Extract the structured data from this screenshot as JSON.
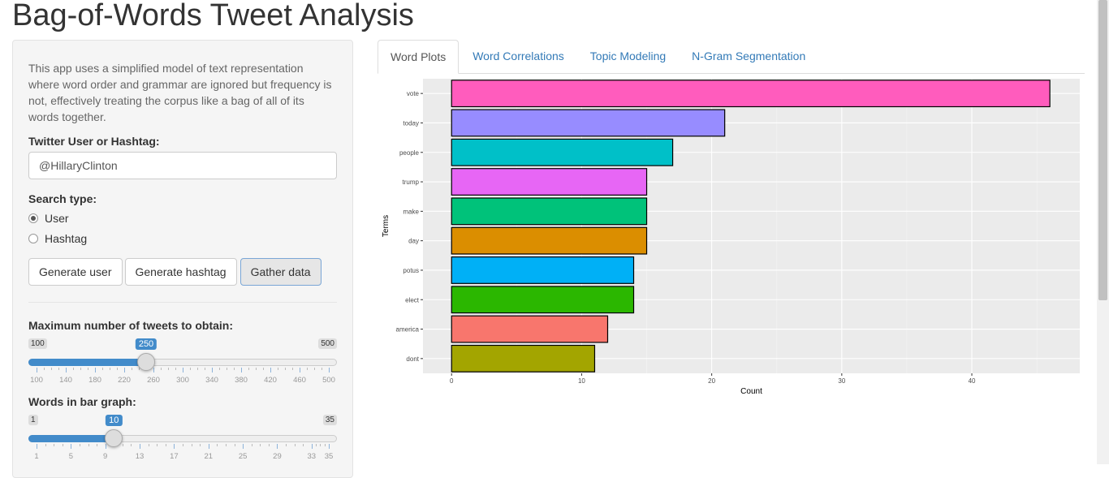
{
  "title": "Bag-of-Words Tweet Analysis",
  "sidebar": {
    "description": "This app uses a simplified model of text representation where word order and grammar are ignored but frequency is not, effectively treating the corpus like a bag of all of its words together.",
    "user_label": "Twitter User or Hashtag:",
    "user_value": "@HillaryClinton",
    "search_type_label": "Search type:",
    "search_options": [
      {
        "label": "User",
        "selected": true
      },
      {
        "label": "Hashtag",
        "selected": false
      }
    ],
    "buttons": {
      "gen_user": "Generate user",
      "gen_hashtag": "Generate hashtag",
      "gather": "Gather data"
    },
    "max_tweets": {
      "label": "Maximum number of tweets to obtain:",
      "min": "100",
      "max": "500",
      "value": "250",
      "min_num": 100,
      "max_num": 500,
      "value_num": 250,
      "ticks": [
        "100",
        "140",
        "180",
        "220",
        "260",
        "300",
        "340",
        "380",
        "420",
        "460",
        "500"
      ]
    },
    "words": {
      "label": "Words in bar graph:",
      "min": "1",
      "max": "35",
      "value": "10",
      "min_num": 1,
      "max_num": 35,
      "value_num": 10,
      "ticks": [
        "1",
        "5",
        "9",
        "13",
        "17",
        "21",
        "25",
        "29",
        "33",
        "35"
      ]
    }
  },
  "tabs": [
    "Word Plots",
    "Word Correlations",
    "Topic Modeling",
    "N-Gram Segmentation"
  ],
  "chart_data": {
    "type": "bar",
    "orientation": "horizontal",
    "categories": [
      "vote",
      "today",
      "people",
      "trump",
      "make",
      "day",
      "potus",
      "elect",
      "america",
      "dont"
    ],
    "values": [
      46,
      21,
      17,
      15,
      15,
      15,
      14,
      14,
      12,
      11
    ],
    "colors": [
      "#FF5CBD",
      "#978CFF",
      "#00C0C8",
      "#E766F5",
      "#00C27A",
      "#DB8E00",
      "#00B0F6",
      "#2BB700",
      "#F8766D",
      "#A3A500"
    ],
    "xlabel": "Count",
    "ylabel": "Terms",
    "xticks": [
      "0",
      "10",
      "20",
      "30",
      "40"
    ],
    "xlim": [
      -2.2,
      48.3
    ],
    "grid": true
  }
}
